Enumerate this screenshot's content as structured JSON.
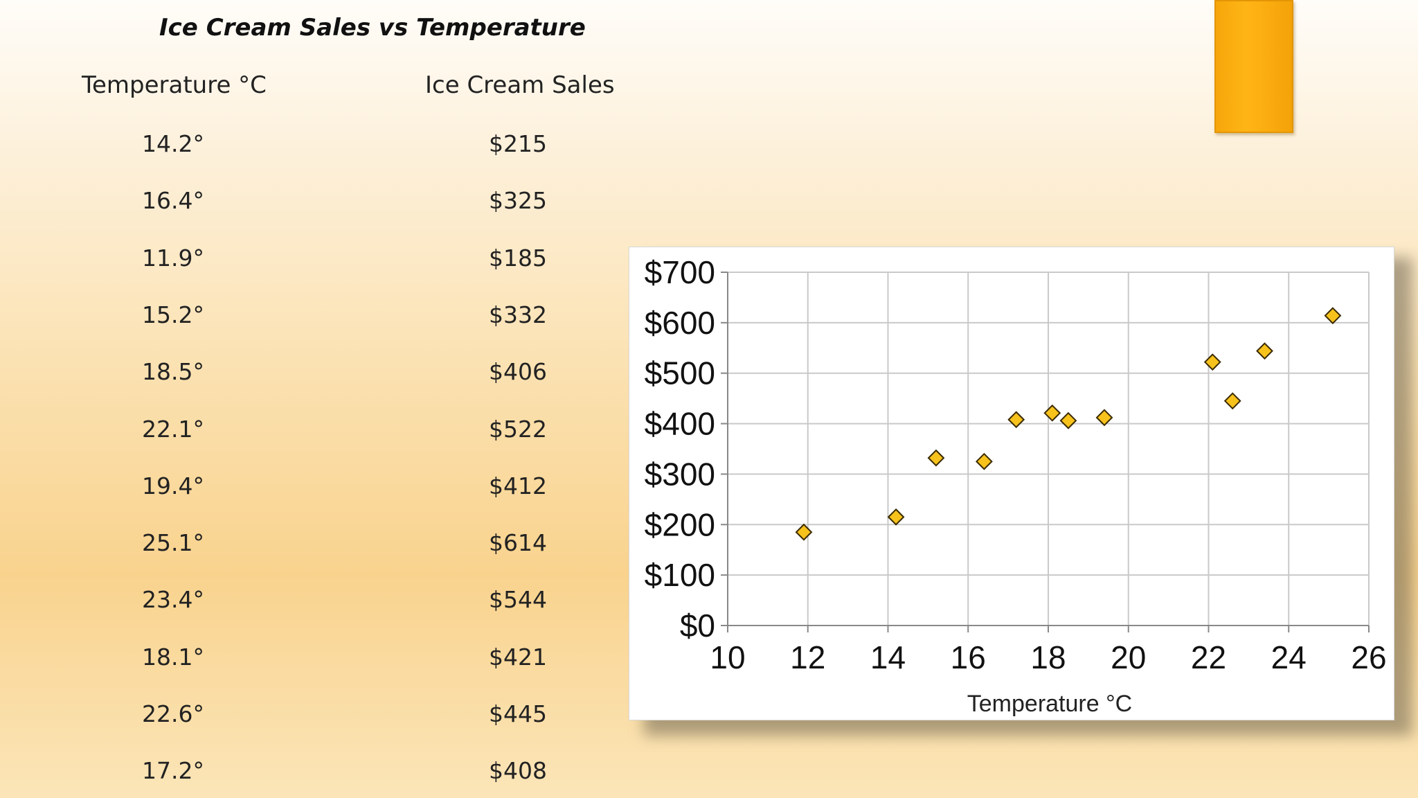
{
  "title": "Ice Cream Sales vs Temperature",
  "table": {
    "headers": [
      "Temperature °C",
      "Ice Cream Sales"
    ],
    "rows": [
      [
        "14.2°",
        "$215"
      ],
      [
        "16.4°",
        "$325"
      ],
      [
        "11.9°",
        "$185"
      ],
      [
        "15.2°",
        "$332"
      ],
      [
        "18.5°",
        "$406"
      ],
      [
        "22.1°",
        "$522"
      ],
      [
        "19.4°",
        "$412"
      ],
      [
        "25.1°",
        "$614"
      ],
      [
        "23.4°",
        "$544"
      ],
      [
        "18.1°",
        "$421"
      ],
      [
        "22.6°",
        "$445"
      ],
      [
        "17.2°",
        "$408"
      ]
    ]
  },
  "colors": {
    "accent": "#ffb516",
    "marker_fill": "#f7c21b",
    "marker_stroke": "#3a2a00",
    "grid": "#c9c9c9"
  },
  "chart_data": {
    "type": "scatter",
    "xlabel": "Temperature °C",
    "ylabel": "",
    "xlim": [
      10,
      26
    ],
    "ylim": [
      0,
      700
    ],
    "x_ticks": [
      10,
      12,
      14,
      16,
      18,
      20,
      22,
      24,
      26
    ],
    "y_ticks": [
      0,
      100,
      200,
      300,
      400,
      500,
      600,
      700
    ],
    "y_tick_labels": [
      "$0",
      "$100",
      "$200",
      "$300",
      "$400",
      "$500",
      "$600",
      "$700"
    ],
    "grid": true,
    "marker": "diamond",
    "points": [
      {
        "x": 14.2,
        "y": 215
      },
      {
        "x": 16.4,
        "y": 325
      },
      {
        "x": 11.9,
        "y": 185
      },
      {
        "x": 15.2,
        "y": 332
      },
      {
        "x": 18.5,
        "y": 406
      },
      {
        "x": 22.1,
        "y": 522
      },
      {
        "x": 19.4,
        "y": 412
      },
      {
        "x": 25.1,
        "y": 614
      },
      {
        "x": 23.4,
        "y": 544
      },
      {
        "x": 18.1,
        "y": 421
      },
      {
        "x": 22.6,
        "y": 445
      },
      {
        "x": 17.2,
        "y": 408
      }
    ]
  }
}
